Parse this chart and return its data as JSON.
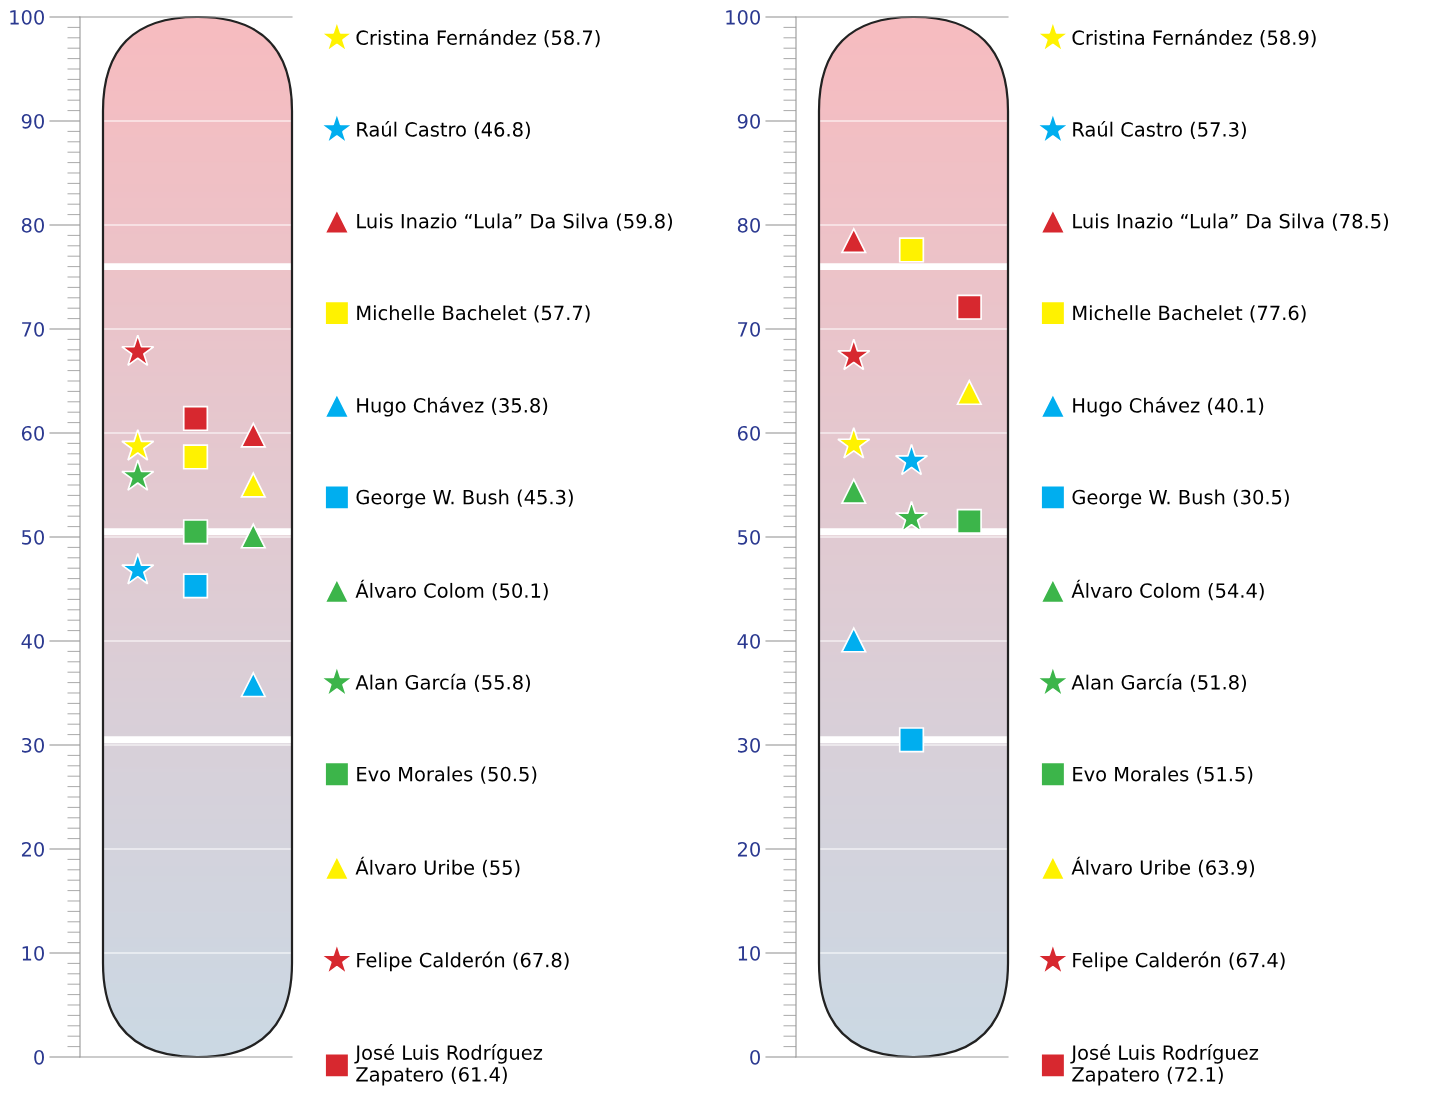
{
  "chart_data": [
    {
      "type": "scatter",
      "categories": [
        null,
        null,
        null
      ],
      "ylim": [
        0,
        100
      ],
      "yticks": [
        0,
        10,
        20,
        30,
        40,
        50,
        60,
        70,
        80,
        90,
        100
      ],
      "grid": "y",
      "legend": "right",
      "ref_lines": [
        {
          "axis": "y",
          "value": 76,
          "color": "#ffffff"
        },
        {
          "axis": "y",
          "value": 50.5,
          "color": "#ffffff"
        },
        {
          "axis": "y",
          "value": 30.5,
          "color": "#ffffff"
        }
      ],
      "series": [
        {
          "name": "Cristina Fernández (58.7)",
          "color": "#fff200",
          "marker": "star",
          "values": [
            58.7,
            null,
            null
          ]
        },
        {
          "name": "Raúl Castro (46.8)",
          "color": "#00aeef",
          "marker": "star",
          "values": [
            46.8,
            null,
            null
          ]
        },
        {
          "name": "Luis Inazio “Lula” Da Silva (59.8)",
          "color": "#d7282f",
          "marker": "triangle",
          "values": [
            null,
            null,
            59.8
          ]
        },
        {
          "name": "Michelle Bachelet (57.7)",
          "color": "#fff200",
          "marker": "square",
          "values": [
            null,
            57.7,
            null
          ]
        },
        {
          "name": "Hugo Chávez (35.8)",
          "color": "#00aeef",
          "marker": "triangle",
          "values": [
            null,
            null,
            35.8
          ]
        },
        {
          "name": "George W. Bush (45.3)",
          "color": "#00aeef",
          "marker": "square",
          "values": [
            null,
            45.3,
            null
          ]
        },
        {
          "name": "Álvaro Colom (50.1)",
          "color": "#3cb54a",
          "marker": "triangle",
          "values": [
            null,
            null,
            50.1
          ]
        },
        {
          "name": "Alan García (55.8)",
          "color": "#3cb54a",
          "marker": "star",
          "values": [
            55.8,
            null,
            null
          ]
        },
        {
          "name": "Evo Morales (50.5)",
          "color": "#3cb54a",
          "marker": "square",
          "values": [
            null,
            50.5,
            null
          ]
        },
        {
          "name": "Álvaro Uribe (55)",
          "color": "#fff200",
          "marker": "triangle",
          "values": [
            null,
            null,
            55
          ]
        },
        {
          "name": "Felipe Calderón (67.8)",
          "color": "#d7282f",
          "marker": "star",
          "values": [
            67.8,
            null,
            null
          ]
        },
        {
          "name": "José Luis Rodríguez\nZapatero (61.4)",
          "color": "#d7282f",
          "marker": "square",
          "values": [
            null,
            61.4,
            null
          ]
        }
      ]
    },
    {
      "type": "scatter",
      "categories": [
        null,
        null,
        null
      ],
      "ylim": [
        0,
        100
      ],
      "yticks": [
        0,
        10,
        20,
        30,
        40,
        50,
        60,
        70,
        80,
        90,
        100
      ],
      "grid": "y",
      "legend": "right",
      "ref_lines": [
        {
          "axis": "y",
          "value": 76,
          "color": "#ffffff"
        },
        {
          "axis": "y",
          "value": 50.5,
          "color": "#ffffff"
        },
        {
          "axis": "y",
          "value": 30.5,
          "color": "#ffffff"
        }
      ],
      "series": [
        {
          "name": "Cristina Fernández (58.9)",
          "color": "#fff200",
          "marker": "star",
          "values": [
            58.9,
            null,
            null
          ]
        },
        {
          "name": "Raúl Castro (57.3)",
          "color": "#00aeef",
          "marker": "star",
          "values": [
            null,
            57.3,
            null
          ]
        },
        {
          "name": "Luis Inazio “Lula” Da Silva (78.5)",
          "color": "#d7282f",
          "marker": "triangle",
          "values": [
            78.5,
            null,
            null
          ]
        },
        {
          "name": "Michelle Bachelet (77.6)",
          "color": "#fff200",
          "marker": "square",
          "values": [
            null,
            77.6,
            null
          ]
        },
        {
          "name": "Hugo Chávez (40.1)",
          "color": "#00aeef",
          "marker": "triangle",
          "values": [
            40.1,
            null,
            null
          ]
        },
        {
          "name": "George W. Bush (30.5)",
          "color": "#00aeef",
          "marker": "square",
          "values": [
            null,
            30.5,
            null
          ]
        },
        {
          "name": "Álvaro Colom (54.4)",
          "color": "#3cb54a",
          "marker": "triangle",
          "values": [
            54.4,
            null,
            null
          ]
        },
        {
          "name": "Alan García (51.8)",
          "color": "#3cb54a",
          "marker": "star",
          "values": [
            null,
            51.8,
            null
          ]
        },
        {
          "name": "Evo Morales (51.5)",
          "color": "#3cb54a",
          "marker": "square",
          "values": [
            null,
            null,
            51.5
          ]
        },
        {
          "name": "Álvaro Uribe (63.9)",
          "color": "#fff200",
          "marker": "triangle",
          "values": [
            null,
            null,
            63.9
          ]
        },
        {
          "name": "Felipe Calderón (67.4)",
          "color": "#d7282f",
          "marker": "star",
          "values": [
            67.4,
            null,
            null
          ]
        },
        {
          "name": "José Luis Rodríguez\nZapatero (72.1)",
          "color": "#d7282f",
          "marker": "square",
          "values": [
            null,
            null,
            72.1
          ]
        }
      ]
    }
  ]
}
